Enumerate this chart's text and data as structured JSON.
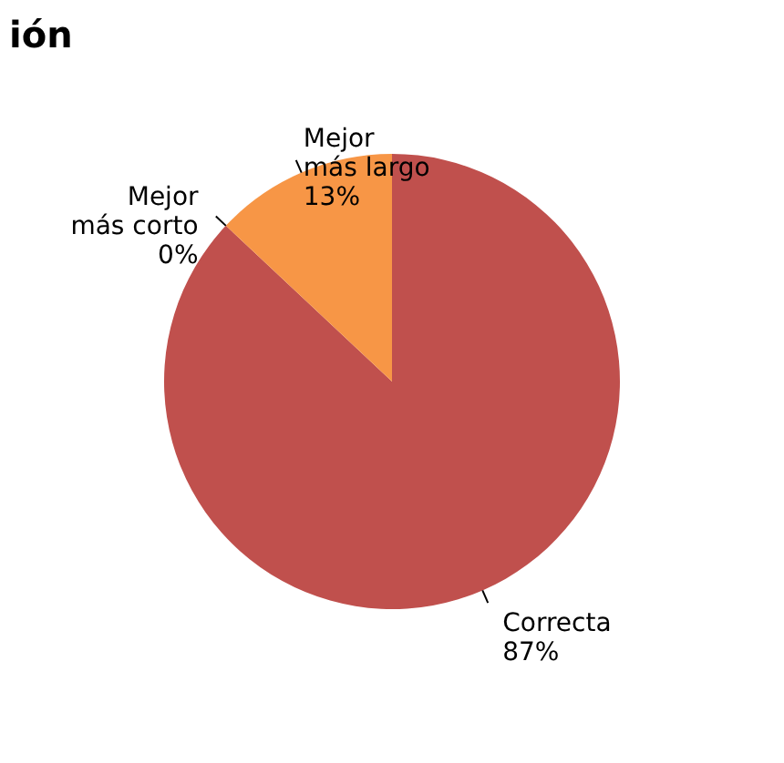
{
  "chart_data": {
    "type": "pie",
    "title": "ión",
    "categories": [
      "Correcta",
      "Mejor más corto",
      "Mejor más largo"
    ],
    "values": [
      87,
      0,
      13
    ],
    "colors": [
      "#c0504d",
      "#9bbb59",
      "#f79646"
    ],
    "value_labels": [
      "87%",
      "0%",
      "13%"
    ]
  }
}
